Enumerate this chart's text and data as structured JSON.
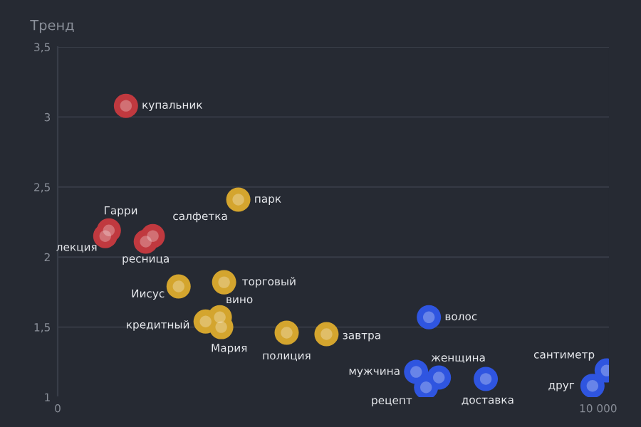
{
  "chart_data": {
    "type": "scatter",
    "ylabel": "Тренд",
    "series": [
      {
        "color": "#c0393f",
        "x": [
          1263,
          947,
          880,
          1760,
          1630
        ],
        "values": [
          3.08,
          2.19,
          2.15,
          2.15,
          2.11
        ]
      },
      {
        "color": "#d4a52e",
        "x": [
          3342,
          3079,
          2237,
          3000,
          2737,
          3026,
          4237,
          4974
        ],
        "values": [
          2.41,
          1.82,
          1.79,
          1.57,
          1.54,
          1.5,
          1.46,
          1.45
        ]
      },
      {
        "color": "#2f55e0",
        "x": [
          6868,
          6632,
          6816,
          7053,
          7921,
          9895,
          10158
        ],
        "values": [
          1.57,
          1.18,
          1.07,
          1.14,
          1.13,
          1.08,
          1.19
        ]
      }
    ],
    "annotations": [
      {
        "text": "купальник",
        "x": 1263,
        "y": 3.08
      },
      {
        "text": "Гарри",
        "x": 947,
        "y": 2.19
      },
      {
        "text": "лекция",
        "x": 880,
        "y": 2.15
      },
      {
        "text": "салфетка",
        "x": 1760,
        "y": 2.15
      },
      {
        "text": "ресница",
        "x": 1630,
        "y": 2.11
      },
      {
        "text": "парк",
        "x": 3342,
        "y": 2.41
      },
      {
        "text": "торговый",
        "x": 3079,
        "y": 1.82
      },
      {
        "text": "Иисус",
        "x": 2237,
        "y": 1.79
      },
      {
        "text": "вино",
        "x": 3000,
        "y": 1.57
      },
      {
        "text": "кредитный",
        "x": 2737,
        "y": 1.54
      },
      {
        "text": "Мария",
        "x": 3026,
        "y": 1.5
      },
      {
        "text": "полиция",
        "x": 4237,
        "y": 1.46
      },
      {
        "text": "завтра",
        "x": 4974,
        "y": 1.45
      },
      {
        "text": "волос",
        "x": 6868,
        "y": 1.57
      },
      {
        "text": "мужчина",
        "x": 6632,
        "y": 1.18
      },
      {
        "text": "рецепт",
        "x": 6816,
        "y": 1.07
      },
      {
        "text": "женщина",
        "x": 7053,
        "y": 1.14
      },
      {
        "text": "доставка",
        "x": 7921,
        "y": 1.13
      },
      {
        "text": "друг",
        "x": 9895,
        "y": 1.08
      },
      {
        "text": "сантиметр",
        "x": 10158,
        "y": 1.19
      }
    ],
    "xlim": [
      0,
      10200
    ],
    "xticks": [
      0,
      {
        "value": 10000,
        "label": "10 000"
      }
    ],
    "ylim": [
      1,
      3.5
    ],
    "yticks": [
      1,
      {
        "value": 1.5,
        "label": "1,5"
      },
      2,
      {
        "value": 2.5,
        "label": "2,5"
      },
      3,
      {
        "value": 3.5,
        "label": "3,5"
      }
    ],
    "grid": "y",
    "marker": "circle",
    "legend": false
  }
}
